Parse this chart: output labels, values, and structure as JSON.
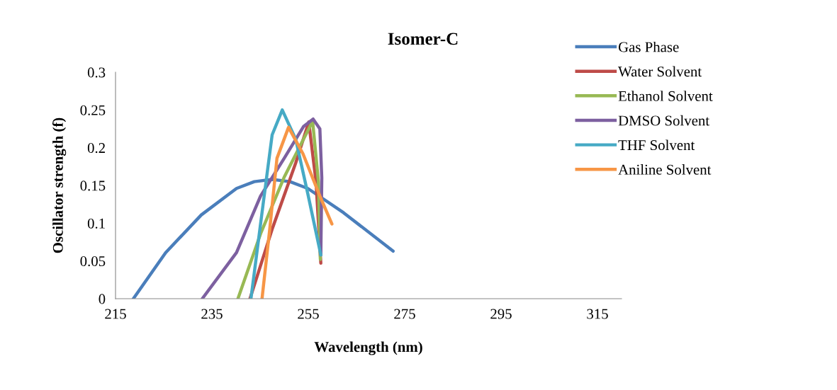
{
  "chart_data": {
    "type": "line",
    "title": "Isomer-C",
    "xlabel": "Wavelength (nm)",
    "ylabel": "Oscillator strength (f)",
    "xlim": [
      215,
      320
    ],
    "xticks": [
      215,
      235,
      255,
      275,
      295,
      315
    ],
    "ylim": [
      0,
      0.3
    ],
    "yticks": [
      0,
      0.05,
      0.1,
      0.15,
      0.2,
      0.25,
      0.3
    ],
    "grid": false,
    "legend": "right",
    "marker": "none",
    "line_style": "solid",
    "series": [
      {
        "name": "Gas Phase",
        "color": "#4a7ebb",
        "x": [
          218.7,
          225.4,
          232.8,
          240.1,
          243.8,
          247.5,
          251.2,
          254.9,
          262.3,
          272.6
        ],
        "values": [
          0,
          0.061,
          0.111,
          0.146,
          0.155,
          0.158,
          0.155,
          0.146,
          0.114,
          0.063
        ]
      },
      {
        "name": "Water Solvent",
        "color": "#be4b48",
        "x": [
          242.9,
          247.5,
          252.4,
          255.1,
          256.6,
          257.6
        ],
        "values": [
          0,
          0.092,
          0.18,
          0.234,
          0.155,
          0.047
        ]
      },
      {
        "name": "Ethanol Solvent",
        "color": "#98b954",
        "x": [
          240.4,
          245.1,
          250.0,
          255.9,
          257.1,
          257.5
        ],
        "values": [
          0,
          0.086,
          0.161,
          0.235,
          0.155,
          0.052
        ]
      },
      {
        "name": "DMSO Solvent",
        "color": "#7d60a0",
        "x": [
          233.0,
          240.1,
          245.1,
          250.0,
          254.0,
          256.0,
          257.4,
          257.8,
          257.6
        ],
        "values": [
          0,
          0.061,
          0.136,
          0.186,
          0.228,
          0.238,
          0.225,
          0.16,
          0.058
        ]
      },
      {
        "name": "THF Solvent",
        "color": "#46aac5",
        "x": [
          243.1,
          245.6,
          247.5,
          249.6,
          252.4,
          254.9,
          257.6
        ],
        "values": [
          0,
          0.124,
          0.217,
          0.25,
          0.211,
          0.139,
          0.058
        ]
      },
      {
        "name": "Aniline Solvent",
        "color": "#f79646",
        "x": [
          245.4,
          247.0,
          248.5,
          250.9,
          253.9,
          257.4,
          259.9
        ],
        "values": [
          0,
          0.092,
          0.186,
          0.227,
          0.192,
          0.136,
          0.099
        ]
      }
    ]
  }
}
